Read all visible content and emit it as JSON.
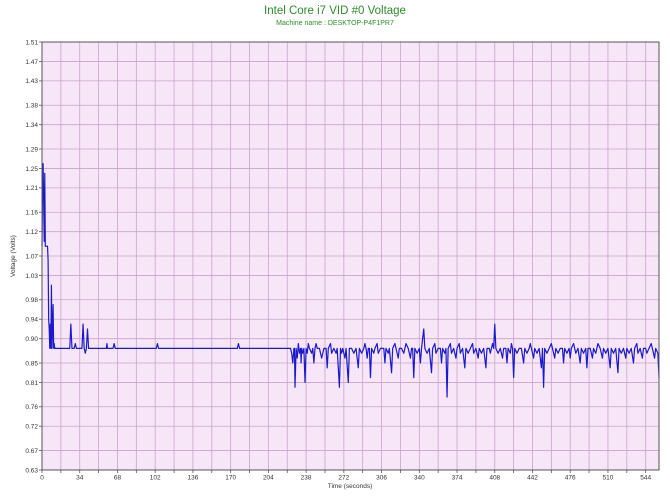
{
  "chart_data": {
    "type": "line",
    "title": "Intel Core i7 VID #0 Voltage",
    "subtitle": "Machine name : DESKTOP-P4F1PR7",
    "xlabel": "Time (seconds)",
    "ylabel": "Voltage (Volts)",
    "xlim": [
      0,
      556
    ],
    "ylim": [
      0.63,
      1.51
    ],
    "x_ticks": [
      "0",
      "34",
      "68",
      "102",
      "136",
      "170",
      "204",
      "238",
      "272",
      "306",
      "340",
      "374",
      "408",
      "442",
      "476",
      "510",
      "544"
    ],
    "x_tick_values": [
      0,
      34,
      68,
      102,
      136,
      170,
      204,
      238,
      272,
      306,
      340,
      374,
      408,
      442,
      476,
      510,
      544
    ],
    "y_ticks": [
      "1.51",
      "1.47",
      "1.43",
      "1.38",
      "1.34",
      "1.29",
      "1.25",
      "1.21",
      "1.16",
      "1.12",
      "1.07",
      "1.03",
      "0.98",
      "0.94",
      "0.90",
      "0.85",
      "0.81",
      "0.76",
      "0.72",
      "0.67",
      "0.63"
    ],
    "y_tick_values": [
      1.51,
      1.47,
      1.43,
      1.38,
      1.34,
      1.29,
      1.25,
      1.21,
      1.16,
      1.12,
      1.07,
      1.03,
      0.98,
      0.94,
      0.9,
      0.85,
      0.81,
      0.76,
      0.72,
      0.67,
      0.63
    ],
    "grid": true,
    "legend": "none",
    "colors": {
      "line": "#1a1acc",
      "plot_bg": "#f7e6f7",
      "grid": "#c8a4cc",
      "title": "#2e8b2e"
    },
    "series": [
      {
        "values": [
          [
            0,
            1.09
          ],
          [
            0.5,
            1.22
          ],
          [
            1,
            1.26
          ],
          [
            1.5,
            1.18
          ],
          [
            2,
            1.1
          ],
          [
            2.5,
            1.24
          ],
          [
            3,
            1.09
          ],
          [
            4,
            1.09
          ],
          [
            5,
            1.09
          ],
          [
            5.5,
            1.06
          ],
          [
            6,
            0.94
          ],
          [
            6.5,
            0.92
          ],
          [
            7,
            0.88
          ],
          [
            7.5,
            0.93
          ],
          [
            8,
            0.88
          ],
          [
            8.5,
            1.01
          ],
          [
            9,
            0.88
          ],
          [
            10,
            0.97
          ],
          [
            10.5,
            0.88
          ],
          [
            11,
            0.89
          ],
          [
            11.5,
            0.88
          ],
          [
            13,
            0.88
          ],
          [
            16,
            0.88
          ],
          [
            20,
            0.88
          ],
          [
            24,
            0.88
          ],
          [
            25,
            0.88
          ],
          [
            26,
            0.93
          ],
          [
            27,
            0.88
          ],
          [
            28,
            0.88
          ],
          [
            29,
            0.88
          ],
          [
            30,
            0.89
          ],
          [
            31,
            0.88
          ],
          [
            33,
            0.88
          ],
          [
            35,
            0.88
          ],
          [
            36,
            0.88
          ],
          [
            37,
            0.93
          ],
          [
            38,
            0.88
          ],
          [
            39,
            0.87
          ],
          [
            40,
            0.88
          ],
          [
            41,
            0.92
          ],
          [
            42,
            0.88
          ],
          [
            43,
            0.88
          ],
          [
            44,
            0.88
          ],
          [
            46,
            0.88
          ],
          [
            48,
            0.88
          ],
          [
            50,
            0.88
          ],
          [
            53,
            0.88
          ],
          [
            57,
            0.88
          ],
          [
            58,
            0.88
          ],
          [
            58.5,
            0.89
          ],
          [
            59,
            0.88
          ],
          [
            62,
            0.88
          ],
          [
            64,
            0.88
          ],
          [
            65,
            0.89
          ],
          [
            66,
            0.88
          ],
          [
            70,
            0.88
          ],
          [
            74,
            0.88
          ],
          [
            78,
            0.88
          ],
          [
            82,
            0.88
          ],
          [
            86,
            0.88
          ],
          [
            90,
            0.88
          ],
          [
            94,
            0.88
          ],
          [
            98,
            0.88
          ],
          [
            102,
            0.88
          ],
          [
            103,
            0.88
          ],
          [
            104,
            0.89
          ],
          [
            105,
            0.88
          ],
          [
            110,
            0.88
          ],
          [
            115,
            0.88
          ],
          [
            120,
            0.88
          ],
          [
            125,
            0.88
          ],
          [
            130,
            0.88
          ],
          [
            140,
            0.88
          ],
          [
            150,
            0.88
          ],
          [
            160,
            0.88
          ],
          [
            170,
            0.88
          ],
          [
            175,
            0.88
          ],
          [
            176,
            0.88
          ],
          [
            177,
            0.89
          ],
          [
            178,
            0.88
          ],
          [
            185,
            0.88
          ],
          [
            195,
            0.88
          ],
          [
            205,
            0.88
          ],
          [
            215,
            0.88
          ],
          [
            220,
            0.88
          ],
          [
            224,
            0.88
          ],
          [
            225,
            0.87
          ],
          [
            226,
            0.85
          ],
          [
            227,
            0.88
          ],
          [
            227.5,
            0.88
          ],
          [
            228,
            0.8
          ],
          [
            228.5,
            0.84
          ],
          [
            229,
            0.88
          ],
          [
            230,
            0.86
          ],
          [
            231,
            0.89
          ],
          [
            232,
            0.87
          ],
          [
            233,
            0.88
          ],
          [
            233.5,
            0.85
          ],
          [
            234,
            0.88
          ],
          [
            235,
            0.87
          ],
          [
            236,
            0.88
          ],
          [
            237,
            0.81
          ],
          [
            238,
            0.88
          ],
          [
            239,
            0.87
          ],
          [
            240,
            0.89
          ],
          [
            241,
            0.88
          ],
          [
            243,
            0.87
          ],
          [
            244,
            0.88
          ],
          [
            245,
            0.85
          ],
          [
            246,
            0.88
          ],
          [
            247,
            0.89
          ],
          [
            248,
            0.88
          ],
          [
            250,
            0.88
          ],
          [
            252,
            0.86
          ],
          [
            254,
            0.88
          ],
          [
            256,
            0.88
          ],
          [
            257,
            0.84
          ],
          [
            258,
            0.88
          ],
          [
            260,
            0.89
          ],
          [
            261,
            0.87
          ],
          [
            263,
            0.88
          ],
          [
            265,
            0.87
          ],
          [
            266,
            0.88
          ],
          [
            268,
            0.8
          ],
          [
            269,
            0.88
          ],
          [
            270,
            0.87
          ],
          [
            271,
            0.88
          ],
          [
            273,
            0.86
          ],
          [
            274,
            0.88
          ],
          [
            276,
            0.81
          ],
          [
            277,
            0.88
          ],
          [
            279,
            0.88
          ],
          [
            281,
            0.87
          ],
          [
            283,
            0.88
          ],
          [
            285,
            0.84
          ],
          [
            286,
            0.88
          ],
          [
            288,
            0.87
          ],
          [
            290,
            0.88
          ],
          [
            291,
            0.89
          ],
          [
            292,
            0.88
          ],
          [
            293,
            0.86
          ],
          [
            294,
            0.88
          ],
          [
            295,
            0.88
          ],
          [
            296,
            0.82
          ],
          [
            297,
            0.88
          ],
          [
            299,
            0.87
          ],
          [
            300,
            0.88
          ],
          [
            302,
            0.89
          ],
          [
            303,
            0.87
          ],
          [
            305,
            0.88
          ],
          [
            308,
            0.88
          ],
          [
            309,
            0.85
          ],
          [
            310,
            0.88
          ],
          [
            312,
            0.87
          ],
          [
            313,
            0.88
          ],
          [
            315,
            0.83
          ],
          [
            316,
            0.88
          ],
          [
            318,
            0.89
          ],
          [
            319,
            0.88
          ],
          [
            321,
            0.86
          ],
          [
            322,
            0.88
          ],
          [
            324,
            0.88
          ],
          [
            326,
            0.87
          ],
          [
            328,
            0.89
          ],
          [
            330,
            0.88
          ],
          [
            332,
            0.86
          ],
          [
            333,
            0.88
          ],
          [
            334,
            0.88
          ],
          [
            335,
            0.82
          ],
          [
            336,
            0.88
          ],
          [
            338,
            0.87
          ],
          [
            340,
            0.88
          ],
          [
            341,
            0.85
          ],
          [
            342,
            0.88
          ],
          [
            344,
            0.92
          ],
          [
            345,
            0.88
          ],
          [
            347,
            0.87
          ],
          [
            349,
            0.88
          ],
          [
            351,
            0.83
          ],
          [
            352,
            0.88
          ],
          [
            354,
            0.89
          ],
          [
            355,
            0.87
          ],
          [
            357,
            0.88
          ],
          [
            359,
            0.88
          ],
          [
            360,
            0.85
          ],
          [
            361,
            0.88
          ],
          [
            363,
            0.87
          ],
          [
            364,
            0.88
          ],
          [
            365,
            0.78
          ],
          [
            366,
            0.88
          ],
          [
            368,
            0.89
          ],
          [
            369,
            0.87
          ],
          [
            371,
            0.88
          ],
          [
            373,
            0.86
          ],
          [
            374,
            0.88
          ],
          [
            376,
            0.89
          ],
          [
            377,
            0.87
          ],
          [
            379,
            0.88
          ],
          [
            381,
            0.84
          ],
          [
            382,
            0.88
          ],
          [
            384,
            0.87
          ],
          [
            386,
            0.88
          ],
          [
            388,
            0.89
          ],
          [
            389,
            0.87
          ],
          [
            391,
            0.88
          ],
          [
            393,
            0.86
          ],
          [
            394,
            0.88
          ],
          [
            396,
            0.87
          ],
          [
            398,
            0.88
          ],
          [
            400,
            0.84
          ],
          [
            401,
            0.88
          ],
          [
            403,
            0.88
          ],
          [
            404,
            0.87
          ],
          [
            406,
            0.89
          ],
          [
            407,
            0.88
          ],
          [
            408,
            0.93
          ],
          [
            409,
            0.88
          ],
          [
            411,
            0.87
          ],
          [
            413,
            0.88
          ],
          [
            415,
            0.86
          ],
          [
            416,
            0.88
          ],
          [
            418,
            0.88
          ],
          [
            419,
            0.85
          ],
          [
            420,
            0.88
          ],
          [
            422,
            0.87
          ],
          [
            423,
            0.89
          ],
          [
            424,
            0.88
          ],
          [
            425,
            0.82
          ],
          [
            426,
            0.88
          ],
          [
            428,
            0.87
          ],
          [
            430,
            0.88
          ],
          [
            432,
            0.88
          ],
          [
            434,
            0.85
          ],
          [
            435,
            0.88
          ],
          [
            437,
            0.87
          ],
          [
            439,
            0.88
          ],
          [
            440,
            0.89
          ],
          [
            441,
            0.88
          ],
          [
            443,
            0.86
          ],
          [
            444,
            0.88
          ],
          [
            446,
            0.87
          ],
          [
            448,
            0.88
          ],
          [
            450,
            0.84
          ],
          [
            451,
            0.88
          ],
          [
            452,
            0.8
          ],
          [
            453,
            0.88
          ],
          [
            455,
            0.87
          ],
          [
            457,
            0.88
          ],
          [
            459,
            0.89
          ],
          [
            460,
            0.88
          ],
          [
            462,
            0.86
          ],
          [
            463,
            0.88
          ],
          [
            465,
            0.87
          ],
          [
            467,
            0.88
          ],
          [
            469,
            0.88
          ],
          [
            470,
            0.85
          ],
          [
            471,
            0.88
          ],
          [
            473,
            0.87
          ],
          [
            475,
            0.88
          ],
          [
            476,
            0.86
          ],
          [
            477,
            0.88
          ],
          [
            479,
            0.89
          ],
          [
            481,
            0.87
          ],
          [
            483,
            0.88
          ],
          [
            485,
            0.85
          ],
          [
            486,
            0.88
          ],
          [
            488,
            0.87
          ],
          [
            490,
            0.88
          ],
          [
            491,
            0.84
          ],
          [
            492,
            0.88
          ],
          [
            494,
            0.88
          ],
          [
            496,
            0.86
          ],
          [
            497,
            0.88
          ],
          [
            499,
            0.87
          ],
          [
            501,
            0.89
          ],
          [
            503,
            0.88
          ],
          [
            505,
            0.86
          ],
          [
            506,
            0.88
          ],
          [
            508,
            0.87
          ],
          [
            510,
            0.88
          ],
          [
            512,
            0.84
          ],
          [
            513,
            0.88
          ],
          [
            515,
            0.87
          ],
          [
            517,
            0.88
          ],
          [
            519,
            0.83
          ],
          [
            520,
            0.88
          ],
          [
            522,
            0.87
          ],
          [
            524,
            0.88
          ],
          [
            526,
            0.86
          ],
          [
            527,
            0.88
          ],
          [
            529,
            0.87
          ],
          [
            531,
            0.88
          ],
          [
            533,
            0.85
          ],
          [
            534,
            0.88
          ],
          [
            536,
            0.89
          ],
          [
            537,
            0.87
          ],
          [
            539,
            0.88
          ],
          [
            541,
            0.86
          ],
          [
            542,
            0.88
          ],
          [
            544,
            0.88
          ],
          [
            545,
            0.87
          ],
          [
            547,
            0.88
          ],
          [
            549,
            0.89
          ],
          [
            550,
            0.88
          ],
          [
            552,
            0.86
          ],
          [
            553,
            0.88
          ],
          [
            555,
            0.87
          ],
          [
            556,
            0.82
          ]
        ]
      }
    ]
  }
}
